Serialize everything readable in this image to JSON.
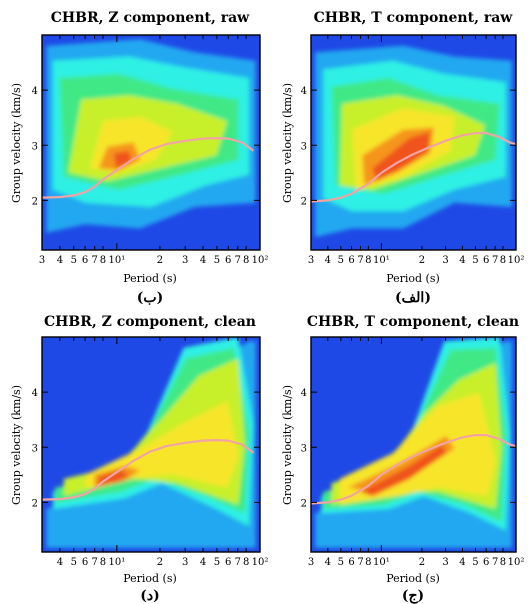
{
  "figure": {
    "colors": {
      "background_bands": [
        "#1f49e6",
        "#23a8f0",
        "#2ff0e4",
        "#3fe986",
        "#c8f02b",
        "#f7e52a",
        "#f5951b",
        "#f0521a"
      ],
      "dispersion_curve": "#f2a3a6"
    },
    "panels": [
      {
        "id": "top-left",
        "title": "CHBR,   Z component,  raw",
        "ylabel": "Group velocity (km/s)",
        "xlabel": "Period (s)",
        "tag": "(ب)"
      },
      {
        "id": "top-right",
        "title": "CHBR,   T component,  raw",
        "ylabel": "Group velocity (km/s)",
        "xlabel": "Period (s)",
        "tag": "(الف)"
      },
      {
        "id": "bottom-left",
        "title": "CHBR,   Z component,  clean",
        "ylabel": "Group velocity (km/s)",
        "xlabel": "Period (s)",
        "tag": "(د)"
      },
      {
        "id": "bottom-right",
        "title": "CHBR,   T component,  clean",
        "ylabel": "Group velocity (km/s)",
        "xlabel": "Period (s)",
        "tag": "(ج)"
      }
    ]
  },
  "chart_data": [
    {
      "type": "heatmap",
      "title": "CHBR,   Z component,  raw",
      "xlabel": "Period (s)",
      "ylabel": "Group velocity (km/s)",
      "x_scale": "log",
      "xlim": [
        3,
        100
      ],
      "ylim": [
        1.1,
        5.0
      ],
      "x_ticks": [
        3,
        4,
        5,
        6,
        7,
        8,
        10,
        20,
        30,
        40,
        50,
        60,
        70,
        80,
        100
      ],
      "x_tick_labels": [
        "3",
        "4",
        "5",
        "6",
        "7",
        "8",
        "10¹",
        "2",
        "3",
        "4",
        "5",
        "6",
        "7",
        "8",
        "10²"
      ],
      "y_ticks": [
        2,
        3,
        4
      ],
      "dispersion_curve": {
        "period": [
          3,
          4,
          5,
          6,
          7,
          8,
          10,
          13,
          17,
          22,
          30,
          40,
          50,
          60,
          75,
          90
        ],
        "velocity": [
          2.05,
          2.06,
          2.09,
          2.15,
          2.25,
          2.38,
          2.55,
          2.75,
          2.92,
          3.02,
          3.08,
          3.12,
          3.13,
          3.12,
          3.05,
          2.9
        ]
      }
    },
    {
      "type": "heatmap",
      "title": "CHBR,   T component,  raw",
      "xlabel": "Period (s)",
      "ylabel": "Group velocity (km/s)",
      "x_scale": "log",
      "xlim": [
        3,
        100
      ],
      "ylim": [
        1.1,
        5.0
      ],
      "x_ticks": [
        3,
        4,
        5,
        6,
        7,
        8,
        10,
        20,
        30,
        40,
        50,
        60,
        70,
        80,
        100
      ],
      "x_tick_labels": [
        "3",
        "4",
        "5",
        "6",
        "7",
        "8",
        "10¹",
        "2",
        "3",
        "4",
        "5",
        "6",
        "7",
        "8",
        "10²"
      ],
      "y_ticks": [
        2,
        3,
        4
      ],
      "dispersion_curve": {
        "period": [
          3,
          4,
          5,
          6,
          8,
          10,
          13,
          17,
          22,
          30,
          40,
          50,
          60,
          75,
          90,
          100
        ],
        "velocity": [
          1.98,
          2.0,
          2.05,
          2.12,
          2.3,
          2.5,
          2.68,
          2.83,
          2.95,
          3.08,
          3.18,
          3.22,
          3.22,
          3.15,
          3.05,
          3.02
        ]
      }
    },
    {
      "type": "heatmap",
      "title": "CHBR,   Z component,  clean",
      "xlabel": "Period (s)",
      "ylabel": "Group velocity (km/s)",
      "x_scale": "log",
      "xlim": [
        3,
        100
      ],
      "ylim": [
        1.1,
        5.0
      ],
      "x_ticks": [
        4,
        5,
        6,
        7,
        8,
        10,
        20,
        30,
        40,
        50,
        60,
        70,
        80,
        100
      ],
      "x_tick_labels": [
        "4",
        "5",
        "6",
        "7",
        "8",
        "10¹",
        "2",
        "3",
        "4",
        "5",
        "6",
        "7",
        "8",
        "10²"
      ],
      "y_ticks": [
        2,
        3,
        4
      ],
      "dispersion_curve": {
        "period": [
          3,
          4,
          5,
          6,
          7,
          8,
          10,
          13,
          17,
          22,
          30,
          40,
          50,
          60,
          75,
          90
        ],
        "velocity": [
          2.05,
          2.06,
          2.09,
          2.15,
          2.25,
          2.38,
          2.55,
          2.75,
          2.92,
          3.02,
          3.08,
          3.12,
          3.13,
          3.12,
          3.05,
          2.9
        ]
      }
    },
    {
      "type": "heatmap",
      "title": "CHBR,   T component,  clean",
      "xlabel": "Period (s)",
      "ylabel": "Group velocity (km/s)",
      "x_scale": "log",
      "xlim": [
        3,
        100
      ],
      "ylim": [
        1.1,
        5.0
      ],
      "x_ticks": [
        3,
        4,
        5,
        6,
        7,
        8,
        10,
        20,
        30,
        40,
        50,
        60,
        70,
        80,
        100
      ],
      "x_tick_labels": [
        "3",
        "4",
        "5",
        "6",
        "7",
        "8",
        "10¹",
        "2",
        "3",
        "4",
        "5",
        "6",
        "7",
        "8",
        "10²"
      ],
      "y_ticks": [
        2,
        3,
        4
      ],
      "dispersion_curve": {
        "period": [
          3,
          4,
          5,
          6,
          8,
          10,
          13,
          17,
          22,
          30,
          40,
          50,
          60,
          75,
          90,
          100
        ],
        "velocity": [
          1.98,
          2.0,
          2.05,
          2.12,
          2.3,
          2.5,
          2.68,
          2.83,
          2.95,
          3.08,
          3.18,
          3.22,
          3.22,
          3.15,
          3.05,
          3.02
        ]
      }
    }
  ]
}
